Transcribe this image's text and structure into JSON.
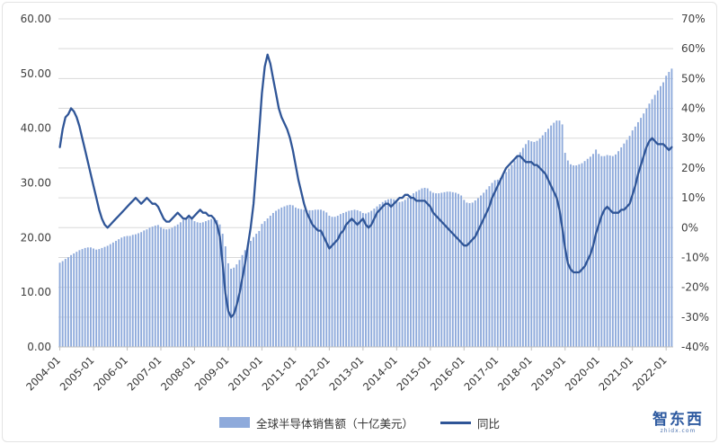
{
  "watermark": {
    "text": "智东西",
    "subtext": "zhidx.com"
  },
  "colors": {
    "bar": "#8EAADB",
    "line": "#2F5597",
    "grid": "#D9D9D9",
    "axis_line": "#BFBFBF",
    "axis_text": "#404040",
    "watermark": "#2E5AA0"
  },
  "chart_data": {
    "type": "bar+line combo",
    "x_start": "2004-01",
    "x_interval": "month",
    "grid": true,
    "legend_position": "bottom",
    "x_tick_labels": [
      "2004-01",
      "2005-01",
      "2006-01",
      "2007-01",
      "2008-01",
      "2009-01",
      "2010-01",
      "2011-01",
      "2012-01",
      "2013-01",
      "2014-01",
      "2015-01",
      "2016-01",
      "2017-01",
      "2018-01",
      "2019-01",
      "2020-01",
      "2021-01",
      "2022-01"
    ],
    "x_tick_interval_months": 12,
    "left_axis": {
      "min": 0,
      "max": 60,
      "tick_step": 10,
      "tick_labels": [
        "0.00",
        "10.00",
        "20.00",
        "30.00",
        "40.00",
        "50.00",
        "60.00"
      ]
    },
    "right_axis": {
      "min": -40,
      "max": 70,
      "tick_step": 10,
      "tick_labels": [
        "-40%",
        "-30%",
        "-20%",
        "-10%",
        "0%",
        "10%",
        "20%",
        "30%",
        "40%",
        "50%",
        "60%",
        "70%"
      ]
    },
    "series": [
      {
        "name": "全球半导体销售额（十亿美元）",
        "type": "bar",
        "axis": "left",
        "color": "#8EAADB",
        "values": [
          15.4,
          15.7,
          16.1,
          16.4,
          16.8,
          17.1,
          17.4,
          17.7,
          17.9,
          18.1,
          18.2,
          18.2,
          18.0,
          17.8,
          17.9,
          18.1,
          18.3,
          18.5,
          18.8,
          19.1,
          19.4,
          19.7,
          20.0,
          20.2,
          20.3,
          20.3,
          20.5,
          20.6,
          20.8,
          21.0,
          21.3,
          21.5,
          21.8,
          22.0,
          22.2,
          22.3,
          21.9,
          21.6,
          21.5,
          21.6,
          21.8,
          22.1,
          22.4,
          22.8,
          23.2,
          23.5,
          23.6,
          23.4,
          23.0,
          22.8,
          22.7,
          22.8,
          23.0,
          23.2,
          23.4,
          23.4,
          23.2,
          22.4,
          20.7,
          18.4,
          15.3,
          14.3,
          14.5,
          15.1,
          15.9,
          16.8,
          17.7,
          18.6,
          19.4,
          20.1,
          20.7,
          21.2,
          22.5,
          23.0,
          23.5,
          24.0,
          24.5,
          24.9,
          25.2,
          25.5,
          25.7,
          25.9,
          26.0,
          25.9,
          25.5,
          25.3,
          25.2,
          25.1,
          25.0,
          25.0,
          25.0,
          25.1,
          25.1,
          25.1,
          24.9,
          24.6,
          24.0,
          23.8,
          23.8,
          24.0,
          24.3,
          24.5,
          24.7,
          24.9,
          25.0,
          25.1,
          25.0,
          24.8,
          24.5,
          24.4,
          24.6,
          24.9,
          25.3,
          25.7,
          26.1,
          26.5,
          26.8,
          27.0,
          27.1,
          27.0,
          26.6,
          26.5,
          26.6,
          26.9,
          27.3,
          27.7,
          28.1,
          28.4,
          28.7,
          29.0,
          29.1,
          29.0,
          28.5,
          28.2,
          28.1,
          28.1,
          28.2,
          28.3,
          28.4,
          28.4,
          28.3,
          28.2,
          28.0,
          27.7,
          26.9,
          26.4,
          26.3,
          26.4,
          26.8,
          27.2,
          27.7,
          28.2,
          28.8,
          29.4,
          30.0,
          30.5,
          30.6,
          30.9,
          31.4,
          32.0,
          32.6,
          33.3,
          34.1,
          34.9,
          35.6,
          36.4,
          37.1,
          37.8,
          37.6,
          37.5,
          37.7,
          38.1,
          38.7,
          39.3,
          39.9,
          40.5,
          41.0,
          41.4,
          41.4,
          40.7,
          35.5,
          34.1,
          33.4,
          33.2,
          33.2,
          33.4,
          33.6,
          34.0,
          34.4,
          34.8,
          35.3,
          36.1,
          35.3,
          34.9,
          34.9,
          35.1,
          35.0,
          34.9,
          35.2,
          35.8,
          36.5,
          37.2,
          37.9,
          38.6,
          39.6,
          40.3,
          41.1,
          41.9,
          42.7,
          43.6,
          44.5,
          45.3,
          46.1,
          46.9,
          47.7,
          48.4,
          49.6,
          50.3,
          50.9
        ]
      },
      {
        "name": "同比",
        "type": "line",
        "axis": "right",
        "color": "#2F5597",
        "values": [
          27,
          33,
          37,
          38,
          40,
          39,
          37,
          34,
          30,
          26,
          22,
          18,
          14,
          10,
          6,
          3,
          1,
          0,
          1,
          2,
          3,
          4,
          5,
          6,
          7,
          8,
          9,
          10,
          9,
          8,
          9,
          10,
          9,
          8,
          8,
          7,
          5,
          3,
          2,
          2,
          3,
          4,
          5,
          4,
          3,
          3,
          4,
          3,
          4,
          5,
          6,
          5,
          5,
          4,
          4,
          3,
          1,
          -3,
          -12,
          -22,
          -28,
          -30,
          -29,
          -26,
          -22,
          -17,
          -12,
          -6,
          0,
          8,
          20,
          32,
          45,
          54,
          58,
          55,
          50,
          45,
          40,
          37,
          35,
          33,
          30,
          26,
          21,
          16,
          12,
          8,
          5,
          3,
          1,
          0,
          -1,
          -1,
          -3,
          -5,
          -7,
          -6,
          -5,
          -4,
          -2,
          -1,
          1,
          2,
          3,
          2,
          1,
          2,
          3,
          1,
          0,
          1,
          3,
          5,
          6,
          7,
          8,
          8,
          7,
          8,
          9,
          10,
          10,
          11,
          11,
          10,
          10,
          9,
          9,
          9,
          9,
          8,
          7,
          5,
          4,
          3,
          2,
          1,
          0,
          -1,
          -2,
          -3,
          -4,
          -5,
          -6,
          -6,
          -5,
          -4,
          -3,
          -1,
          1,
          3,
          5,
          7,
          10,
          12,
          14,
          16,
          18,
          20,
          21,
          22,
          23,
          24,
          24,
          23,
          22,
          22,
          22,
          21,
          21,
          20,
          19,
          18,
          16,
          14,
          12,
          10,
          6,
          0,
          -7,
          -12,
          -14,
          -15,
          -15,
          -15,
          -14,
          -13,
          -11,
          -9,
          -6,
          -2,
          1,
          4,
          6,
          7,
          6,
          5,
          5,
          5,
          6,
          6,
          7,
          8,
          11,
          14,
          18,
          21,
          24,
          27,
          29,
          30,
          29,
          28,
          28,
          28,
          27,
          26,
          27
        ]
      }
    ]
  }
}
